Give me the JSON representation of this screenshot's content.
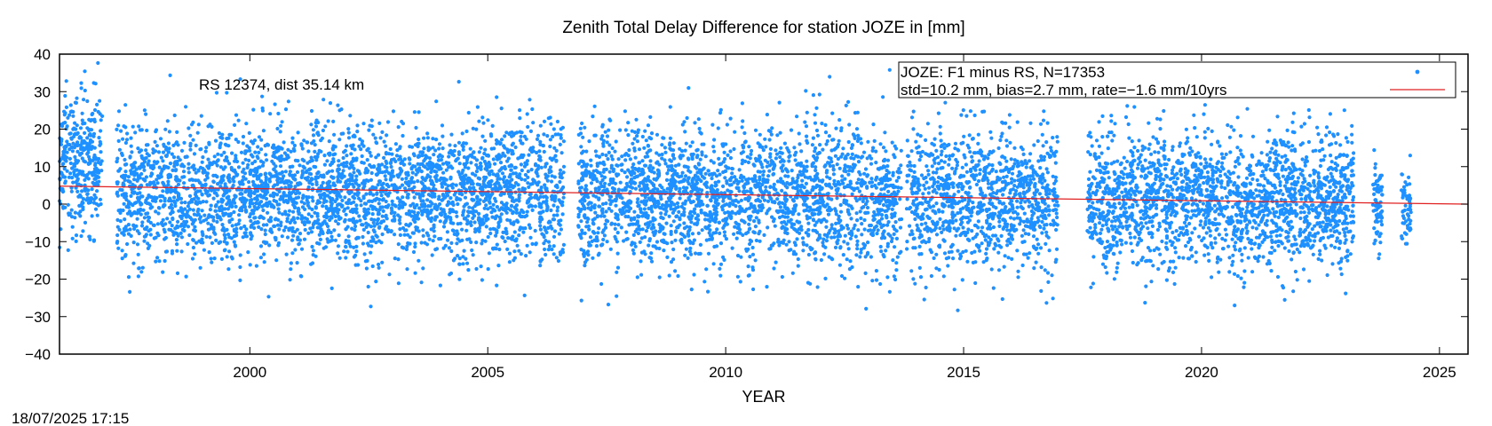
{
  "chart_data": {
    "type": "scatter",
    "title": "Zenith Total Delay Difference for station JOZE in [mm]",
    "xlabel": "YEAR",
    "ylabel": "",
    "xlim": [
      1996.0,
      2025.6
    ],
    "ylim": [
      -40,
      40
    ],
    "x_ticks": [
      2000,
      2005,
      2010,
      2015,
      2020,
      2025
    ],
    "y_ticks": [
      -40,
      -30,
      -20,
      -10,
      0,
      10,
      20,
      30,
      40
    ],
    "grid": false,
    "legend_position": "top-right",
    "annotation": "RS 12374, dist 35.14 km",
    "legend": {
      "line1": "JOZE: F1 minus RS, N=17353",
      "line2": "std=10.2 mm, bias=2.7 mm, rate=−1.6 mm/10yrs"
    },
    "series": [
      {
        "kind": "points",
        "color": "#1e90ff",
        "n": 17353,
        "std": 10.2,
        "bias": 2.7,
        "data_ranges": [
          [
            1996.0,
            1996.9
          ],
          [
            1997.2,
            2006.6
          ],
          [
            2006.9,
            2013.7
          ],
          [
            2013.8,
            2017.0
          ],
          [
            2017.6,
            2023.2
          ],
          [
            2023.6,
            2023.8
          ],
          [
            2024.2,
            2024.4
          ]
        ]
      },
      {
        "kind": "trend",
        "color": "#e02020",
        "x": [
          1996.0,
          2025.6
        ],
        "y": [
          4.8,
          0.0
        ]
      }
    ]
  },
  "timestamp": "18/07/2025 17:15"
}
